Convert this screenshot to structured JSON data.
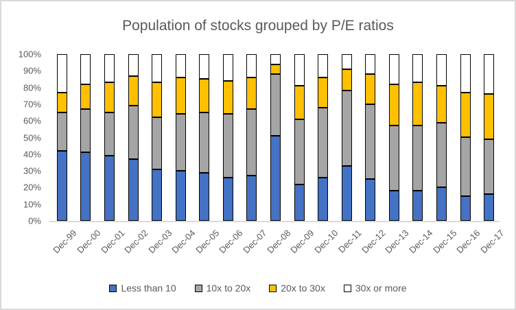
{
  "title": "Population of stocks grouped by P/E ratios",
  "colors": {
    "series_blue": "#4472C4",
    "series_gray": "#A5A5A5",
    "series_gold": "#FFC000",
    "series_white": "#FFFFFF",
    "segment_border": "#000000",
    "text": "#595959",
    "axis_line": "#D9D9D9",
    "chart_border": "#D9D9D9",
    "background": "#FFFFFF"
  },
  "chart_data": {
    "type": "bar",
    "stacked": true,
    "percent_stacked": true,
    "title": "Population of stocks grouped by P/E ratios",
    "categories": [
      "Dec-99",
      "Dec-00",
      "Dec-01",
      "Dec-02",
      "Dec-03",
      "Dec-04",
      "Dec-05",
      "Dec-06",
      "Dec-07",
      "Dec-08",
      "Dec-09",
      "Dec-10",
      "Dec-11",
      "Dec-12",
      "Dec-13",
      "Dec-14",
      "Dec-15",
      "Dec-16",
      "Dec-17"
    ],
    "series": [
      {
        "name": "Less than 10",
        "color": "#4472C4",
        "values": [
          42,
          41,
          39,
          37,
          31,
          30,
          29,
          26,
          27,
          51,
          22,
          26,
          33,
          25,
          18,
          18,
          20,
          15,
          16
        ]
      },
      {
        "name": "10x to 20x",
        "color": "#A5A5A5",
        "values": [
          23,
          26,
          26,
          32,
          31,
          34,
          36,
          38,
          40,
          37,
          39,
          42,
          45,
          45,
          39,
          39,
          39,
          35,
          33
        ]
      },
      {
        "name": "20x to 30x",
        "color": "#FFC000",
        "values": [
          12,
          15,
          18,
          18,
          21,
          22,
          20,
          20,
          19,
          6,
          20,
          18,
          13,
          18,
          25,
          26,
          22,
          27,
          27
        ]
      },
      {
        "name": "30x or more",
        "color": "#FFFFFF",
        "values": [
          23,
          18,
          17,
          13,
          17,
          14,
          15,
          16,
          14,
          6,
          19,
          14,
          9,
          12,
          18,
          17,
          19,
          23,
          24
        ]
      }
    ],
    "y_axis": {
      "min": 0,
      "max": 100,
      "unit": "%",
      "tick_labels": [
        "100%",
        "90%",
        "80%",
        "70%",
        "60%",
        "50%",
        "40%",
        "30%",
        "20%",
        "10%",
        "0%"
      ]
    },
    "x_label_rotation_deg": 45,
    "gridlines": false,
    "legend": {
      "position": "bottom",
      "entries": [
        "Less than 10",
        "10x to 20x",
        "20x to 30x",
        "30x or more"
      ]
    }
  }
}
